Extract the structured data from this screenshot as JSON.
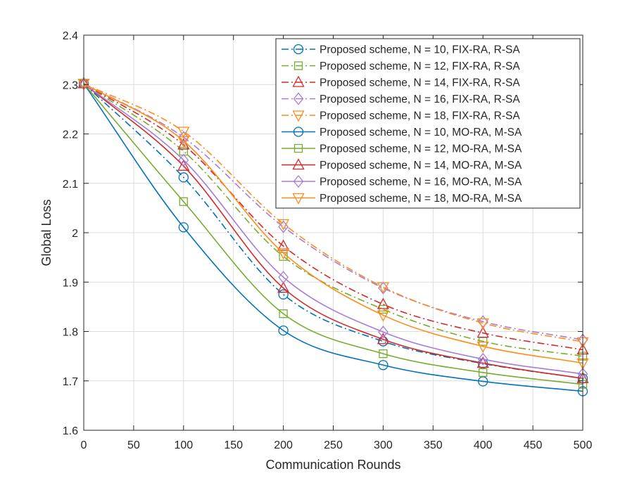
{
  "chart_data": {
    "type": "line",
    "title": "",
    "xlabel": "Communication Rounds",
    "ylabel": "Global Loss",
    "xlim": [
      0,
      500
    ],
    "ylim": [
      1.6,
      2.4
    ],
    "x_ticks": [
      0,
      50,
      100,
      150,
      200,
      250,
      300,
      350,
      400,
      450,
      500
    ],
    "y_ticks": [
      1.6,
      1.7,
      1.8,
      1.9,
      2.0,
      2.1,
      2.2,
      2.3,
      2.4
    ],
    "x_tick_labels": [
      "0",
      "50",
      "100",
      "150",
      "200",
      "250",
      "300",
      "350",
      "400",
      "450",
      "500"
    ],
    "y_tick_labels": [
      "1.6",
      "1.7",
      "1.8",
      "1.9",
      "2",
      "2.1",
      "2.2",
      "2.3",
      "2.4"
    ],
    "grid": true,
    "legend_position": "top-right",
    "marker_x": [
      0,
      100,
      200,
      300,
      400,
      500
    ],
    "series": [
      {
        "name": "Proposed scheme, N = 10, FIX-RA, R-SA",
        "color": "#0072BD",
        "line_style": "dash-dot",
        "marker": "circle",
        "values": [
          2.302,
          2.112,
          1.875,
          1.78,
          1.735,
          1.705
        ]
      },
      {
        "name": "Proposed scheme, N = 12, FIX-RA, R-SA",
        "color": "#77AC30",
        "line_style": "dash-dot",
        "marker": "square",
        "values": [
          2.302,
          2.165,
          1.952,
          1.845,
          1.78,
          1.75
        ]
      },
      {
        "name": "Proposed scheme, N = 14, FIX-RA, R-SA",
        "color": "#D62728",
        "line_style": "dash-dot",
        "marker": "triangle-up",
        "values": [
          2.302,
          2.178,
          1.973,
          1.855,
          1.797,
          1.763
        ]
      },
      {
        "name": "Proposed scheme, N = 16, FIX-RA, R-SA",
        "color": "#A77CD8",
        "line_style": "dash-dot",
        "marker": "diamond",
        "values": [
          2.302,
          2.193,
          2.012,
          1.888,
          1.82,
          1.783
        ]
      },
      {
        "name": "Proposed scheme, N = 18, FIX-RA, R-SA",
        "color": "#FF8C1A",
        "line_style": "dash-dot",
        "marker": "triangle-down",
        "values": [
          2.302,
          2.205,
          2.018,
          1.89,
          1.817,
          1.779
        ]
      },
      {
        "name": "Proposed scheme, N = 10, MO-RA, M-SA",
        "color": "#0072BD",
        "line_style": "solid",
        "marker": "circle",
        "values": [
          2.302,
          2.011,
          1.802,
          1.732,
          1.699,
          1.679
        ]
      },
      {
        "name": "Proposed scheme, N = 12, MO-RA, M-SA",
        "color": "#77AC30",
        "line_style": "solid",
        "marker": "square",
        "values": [
          2.302,
          2.063,
          1.836,
          1.755,
          1.717,
          1.693
        ]
      },
      {
        "name": "Proposed scheme, N = 14, MO-RA, M-SA",
        "color": "#D62728",
        "line_style": "solid",
        "marker": "triangle-up",
        "values": [
          2.302,
          2.135,
          1.888,
          1.784,
          1.736,
          1.705
        ]
      },
      {
        "name": "Proposed scheme, N = 16, MO-RA, M-SA",
        "color": "#A77CD8",
        "line_style": "solid",
        "marker": "diamond",
        "values": [
          2.302,
          2.147,
          1.91,
          1.799,
          1.744,
          1.714
        ]
      },
      {
        "name": "Proposed scheme, N = 18, MO-RA, M-SA",
        "color": "#FF8C1A",
        "line_style": "solid",
        "marker": "triangle-down",
        "values": [
          2.302,
          2.186,
          1.959,
          1.833,
          1.77,
          1.736
        ]
      }
    ]
  }
}
